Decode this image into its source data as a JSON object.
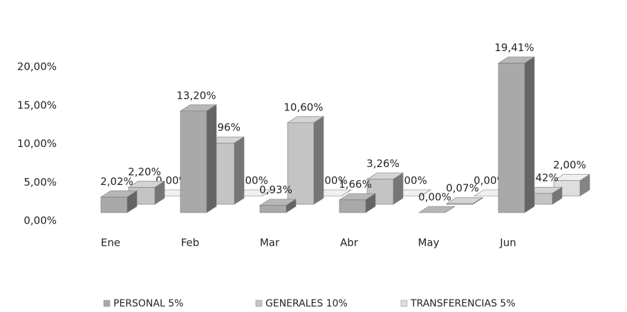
{
  "chart_data": {
    "type": "bar3d",
    "categories": [
      "Ene",
      "Feb",
      "Mar",
      "Abr",
      "May",
      "Jun"
    ],
    "series": [
      {
        "name": "PERSONAL 5%",
        "color": "#a9a9a9",
        "values": [
          2.02,
          13.2,
          0.93,
          1.66,
          0,
          19.41
        ],
        "value_labels": [
          "2,02%",
          "13,20%",
          "0,93%",
          "1,66%",
          "0,00%",
          "19,41%"
        ]
      },
      {
        "name": "GENERALES  10%",
        "color": "#c4c4c4",
        "values": [
          2.2,
          7.96,
          10.6,
          3.26,
          0.07,
          1.42
        ],
        "value_labels": [
          "2,20%",
          "7,96%",
          "10,60%",
          "3,26%",
          "0,07%",
          "1,42%"
        ]
      },
      {
        "name": "TRANSFERENCIAS 5%",
        "color": "#dedede",
        "values": [
          0,
          0,
          0,
          0,
          0,
          2
        ],
        "value_labels": [
          "0,00%",
          "0,00%",
          "0,00%",
          "0,00%",
          "0,00%",
          "2,00%"
        ]
      }
    ],
    "ylim": [
      0,
      20
    ],
    "yticks": [
      {
        "value": 0,
        "label": "0,00%"
      },
      {
        "value": 5,
        "label": "5,00%"
      },
      {
        "value": 10,
        "label": "10,00%"
      },
      {
        "value": 15,
        "label": "15,00%"
      },
      {
        "value": 20,
        "label": "20,00%"
      }
    ]
  }
}
